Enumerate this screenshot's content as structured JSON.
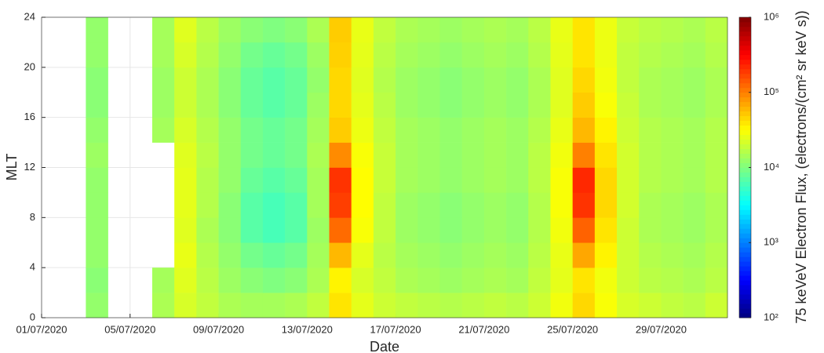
{
  "chart_data": {
    "type": "heatmap",
    "xlabel": "Date",
    "ylabel": "MLT",
    "colorbar_label": "75 keVeV Electron Flux, (electrons/(cm² sr keV s))",
    "x": [
      "03/07/2020",
      "04/07/2020",
      "05/07/2020",
      "06/07/2020",
      "07/07/2020",
      "08/07/2020",
      "09/07/2020",
      "10/07/2020",
      "11/07/2020",
      "12/07/2020",
      "13/07/2020",
      "14/07/2020",
      "15/07/2020",
      "16/07/2020",
      "17/07/2020",
      "18/07/2020",
      "19/07/2020",
      "20/07/2020",
      "21/07/2020",
      "22/07/2020",
      "23/07/2020",
      "24/07/2020",
      "25/07/2020",
      "26/07/2020",
      "27/07/2020",
      "28/07/2020",
      "29/07/2020",
      "30/07/2020",
      "31/07/2020"
    ],
    "xlim": [
      "01/07/2020",
      "01/08/2020"
    ],
    "xticks": [
      "01/07/2020",
      "05/07/2020",
      "09/07/2020",
      "13/07/2020",
      "17/07/2020",
      "21/07/2020",
      "25/07/2020",
      "29/07/2020"
    ],
    "y_edges": [
      0,
      2,
      4,
      6,
      8,
      10,
      12,
      14,
      16,
      18,
      20,
      22,
      24
    ],
    "ylim": [
      0,
      24
    ],
    "yticks": [
      0,
      4,
      8,
      12,
      16,
      20,
      24
    ],
    "grid": true,
    "colormap": "jet",
    "zscale": "log",
    "zlim": [
      100,
      1000000
    ],
    "zticks": [
      {
        "value": 100,
        "label": "10²"
      },
      {
        "value": 1000,
        "label": "10³"
      },
      {
        "value": 10000,
        "label": "10⁴"
      },
      {
        "value": 100000,
        "label": "10⁵"
      },
      {
        "value": 1000000,
        "label": "10⁶"
      }
    ],
    "z": [
      [
        12000,
        null,
        null,
        15000,
        22000,
        18000,
        15000,
        14000,
        14000,
        15000,
        18000,
        40000,
        25000,
        20000,
        18000,
        17000,
        16000,
        17000,
        18000,
        17000,
        20000,
        28000,
        45000,
        30000,
        22000,
        20000,
        18000,
        17000,
        20000
      ],
      [
        11000,
        null,
        null,
        14000,
        24000,
        17000,
        13000,
        11000,
        10000,
        11000,
        15000,
        35000,
        22000,
        18000,
        15000,
        14000,
        13000,
        14000,
        15000,
        14000,
        18000,
        25000,
        40000,
        28000,
        20000,
        17000,
        16000,
        15000,
        17000
      ],
      [
        12000,
        null,
        null,
        null,
        26000,
        16000,
        12000,
        9000,
        8000,
        9000,
        14000,
        60000,
        25000,
        17000,
        14000,
        13000,
        12000,
        13000,
        14000,
        13000,
        17000,
        26000,
        70000,
        35000,
        20000,
        16000,
        15000,
        14000,
        16000
      ],
      [
        12000,
        null,
        null,
        null,
        24000,
        15000,
        11000,
        7000,
        6000,
        7000,
        13000,
        120000,
        30000,
        18000,
        13000,
        12000,
        11000,
        12000,
        13000,
        12000,
        16000,
        28000,
        130000,
        40000,
        20000,
        15000,
        14000,
        13000,
        15000
      ],
      [
        12000,
        null,
        null,
        null,
        25000,
        16000,
        11000,
        7000,
        6000,
        7000,
        14000,
        180000,
        32000,
        18000,
        13000,
        12000,
        11000,
        12000,
        13000,
        12000,
        16000,
        30000,
        200000,
        45000,
        21000,
        15000,
        14000,
        13000,
        15000
      ],
      [
        12000,
        null,
        null,
        null,
        25000,
        16000,
        12000,
        8000,
        7000,
        8000,
        14000,
        200000,
        32000,
        19000,
        14000,
        13000,
        12000,
        13000,
        14000,
        13000,
        17000,
        30000,
        220000,
        45000,
        21000,
        16000,
        15000,
        14000,
        16000
      ],
      [
        13000,
        null,
        null,
        null,
        24000,
        17000,
        12000,
        9000,
        8000,
        9000,
        15000,
        90000,
        30000,
        19000,
        14000,
        13000,
        12000,
        13000,
        14000,
        13000,
        17000,
        28000,
        100000,
        40000,
        21000,
        16000,
        15000,
        14000,
        16000
      ],
      [
        12000,
        null,
        null,
        14000,
        22000,
        16000,
        12000,
        9000,
        8000,
        9000,
        14000,
        50000,
        27000,
        18000,
        14000,
        13000,
        12000,
        13000,
        14000,
        13000,
        16000,
        26000,
        60000,
        35000,
        20000,
        16000,
        15000,
        14000,
        16000
      ],
      [
        11000,
        null,
        null,
        13000,
        20000,
        15000,
        11000,
        8000,
        7000,
        8000,
        13000,
        45000,
        25000,
        17000,
        13000,
        12000,
        11000,
        12000,
        13000,
        12000,
        15000,
        24000,
        50000,
        30000,
        19000,
        15000,
        14000,
        13000,
        15000
      ],
      [
        11000,
        null,
        null,
        13000,
        20000,
        15000,
        11000,
        8000,
        7000,
        8000,
        12000,
        45000,
        24000,
        16000,
        13000,
        12000,
        11000,
        12000,
        13000,
        12000,
        15000,
        24000,
        45000,
        28000,
        18000,
        15000,
        14000,
        13000,
        15000
      ],
      [
        12000,
        null,
        null,
        14000,
        22000,
        16000,
        12000,
        9000,
        8000,
        9000,
        13000,
        48000,
        25000,
        17000,
        14000,
        13000,
        12000,
        13000,
        14000,
        13000,
        16000,
        25000,
        40000,
        27000,
        18000,
        16000,
        15000,
        14000,
        16000
      ],
      [
        12000,
        null,
        null,
        14000,
        24000,
        17000,
        13000,
        11000,
        10000,
        11000,
        15000,
        50000,
        26000,
        18000,
        15000,
        14000,
        13000,
        14000,
        15000,
        14000,
        17000,
        26000,
        40000,
        27000,
        19000,
        17000,
        16000,
        15000,
        17000
      ]
    ]
  }
}
